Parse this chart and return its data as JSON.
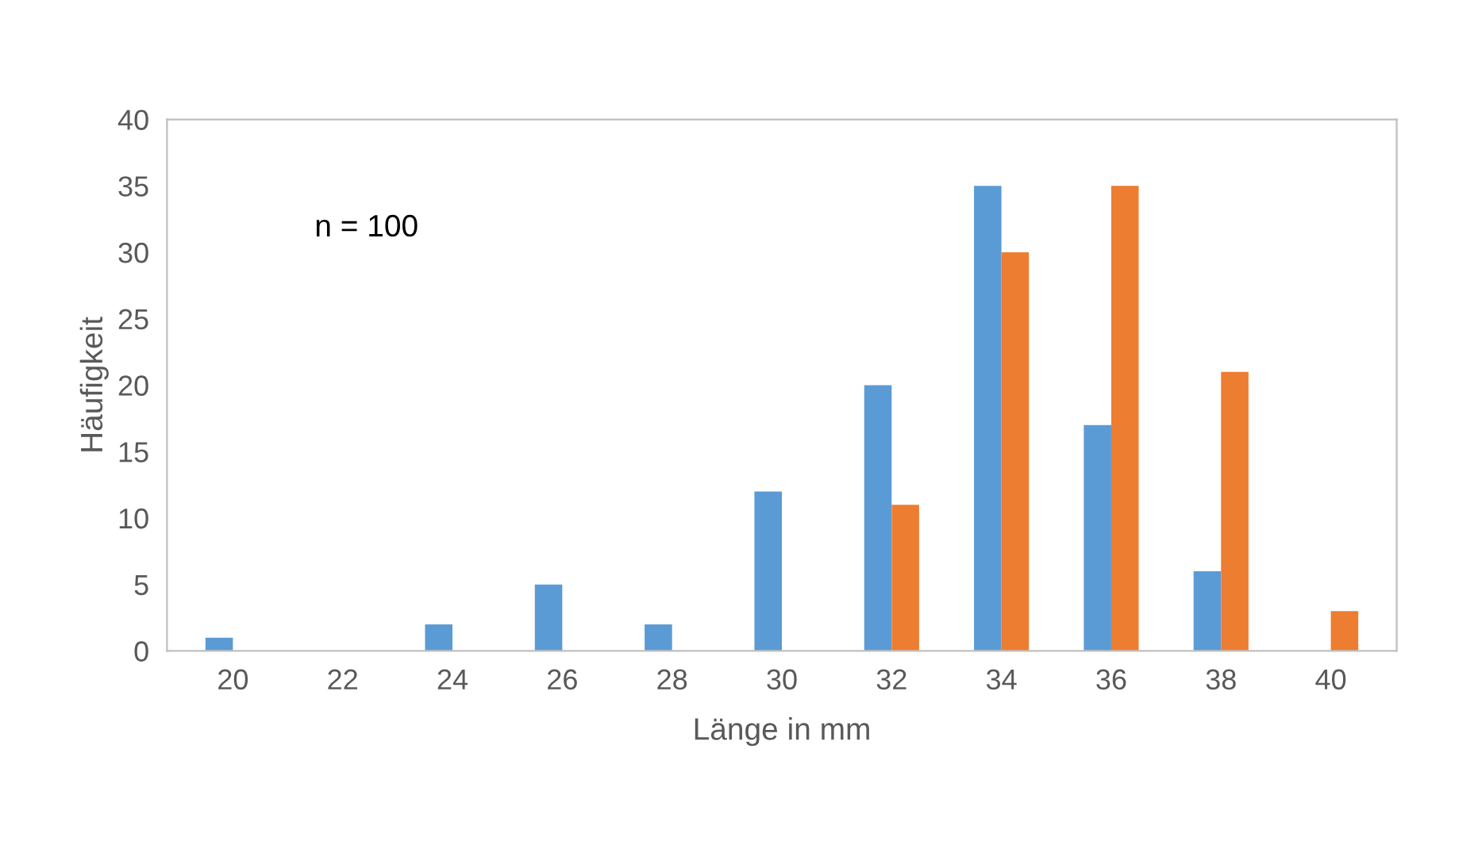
{
  "chart_data": {
    "type": "bar",
    "xlabel": "Länge in mm",
    "ylabel": "Häufigkeit",
    "categories": [
      "20",
      "22",
      "24",
      "26",
      "28",
      "30",
      "32",
      "34",
      "36",
      "38",
      "40"
    ],
    "series": [
      {
        "color": "#5b9bd5",
        "values": [
          1,
          0,
          2,
          5,
          2,
          12,
          20,
          35,
          17,
          6,
          0
        ]
      },
      {
        "color": "#ed7d31",
        "values": [
          0,
          0,
          0,
          0,
          0,
          0,
          11,
          30,
          35,
          21,
          3
        ]
      }
    ],
    "ylim": [
      0,
      40
    ],
    "yticks": [
      0,
      5,
      10,
      15,
      20,
      25,
      30,
      35,
      40
    ],
    "grid": false,
    "legend": false,
    "annotations": [
      "n = 100"
    ]
  }
}
